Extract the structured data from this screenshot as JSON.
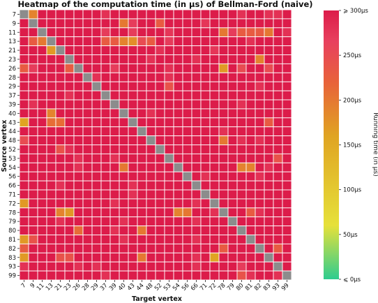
{
  "chart_data": {
    "type": "heatmap",
    "title": "Heatmap of the computation time (in μs) of Bellman-Ford (naive)",
    "xlabel": "Target vertex",
    "ylabel": "Source vertex",
    "colorbar": {
      "label": "Running time (in μs)",
      "range": [
        0,
        300
      ],
      "ticks": [
        {
          "value": 300,
          "label": "⩾ 300μs"
        },
        {
          "value": 250,
          "label": "250μs"
        },
        {
          "value": 200,
          "label": "200μs"
        },
        {
          "value": 150,
          "label": "150μs"
        },
        {
          "value": 100,
          "label": "100μs"
        },
        {
          "value": 50,
          "label": "50μs"
        },
        {
          "value": 0,
          "label": "⩽ 0μs"
        }
      ],
      "stops": [
        {
          "value": 0,
          "color": "#2ecc8f"
        },
        {
          "value": 60,
          "color": "#e6e13a"
        },
        {
          "value": 160,
          "color": "#e0a422"
        },
        {
          "value": 220,
          "color": "#e8623a"
        },
        {
          "value": 265,
          "color": "#e8415e"
        },
        {
          "value": 300,
          "color": "#dc1c4a"
        }
      ]
    },
    "diagonal_color": "#8c8c8c",
    "grid": false,
    "vertices": [
      "7",
      "9",
      "11",
      "13",
      "21",
      "23",
      "26",
      "28",
      "29",
      "37",
      "39",
      "40",
      "43",
      "44",
      "48",
      "52",
      "53",
      "54",
      "56",
      "66",
      "71",
      "72",
      "78",
      "79",
      "80",
      "81",
      "82",
      "83",
      "93",
      "99"
    ],
    "default_value": 300,
    "overrides": [
      [
        0,
        1,
        190
      ],
      [
        0,
        9,
        280
      ],
      [
        0,
        24,
        280
      ],
      [
        0,
        27,
        280
      ],
      [
        0,
        28,
        280
      ],
      [
        1,
        11,
        200
      ],
      [
        1,
        12,
        270
      ],
      [
        1,
        15,
        230
      ],
      [
        1,
        20,
        275
      ],
      [
        2,
        9,
        270
      ],
      [
        2,
        12,
        270
      ],
      [
        2,
        16,
        275
      ],
      [
        2,
        22,
        200
      ],
      [
        2,
        23,
        270
      ],
      [
        2,
        24,
        230
      ],
      [
        2,
        25,
        230
      ],
      [
        2,
        26,
        230
      ],
      [
        2,
        27,
        200
      ],
      [
        2,
        29,
        280
      ],
      [
        3,
        1,
        230
      ],
      [
        3,
        2,
        200
      ],
      [
        3,
        3,
        270
      ],
      [
        3,
        9,
        230
      ],
      [
        3,
        10,
        230
      ],
      [
        3,
        11,
        190
      ],
      [
        3,
        12,
        180
      ],
      [
        3,
        13,
        250
      ],
      [
        3,
        14,
        230
      ],
      [
        3,
        16,
        270
      ],
      [
        3,
        25,
        280
      ],
      [
        4,
        3,
        170
      ],
      [
        4,
        15,
        280
      ],
      [
        4,
        21,
        275
      ],
      [
        5,
        14,
        280
      ],
      [
        5,
        19,
        280
      ],
      [
        5,
        26,
        190
      ],
      [
        6,
        0,
        230
      ],
      [
        6,
        1,
        270
      ],
      [
        6,
        5,
        230
      ],
      [
        6,
        10,
        270
      ],
      [
        6,
        16,
        280
      ],
      [
        6,
        22,
        170
      ],
      [
        6,
        24,
        250
      ],
      [
        6,
        27,
        250
      ],
      [
        7,
        8,
        280
      ],
      [
        7,
        16,
        280
      ],
      [
        8,
        16,
        240
      ],
      [
        8,
        26,
        280
      ],
      [
        9,
        5,
        280
      ],
      [
        10,
        1,
        280
      ],
      [
        10,
        24,
        280
      ],
      [
        11,
        3,
        190
      ],
      [
        11,
        14,
        280
      ],
      [
        12,
        0,
        160
      ],
      [
        12,
        3,
        210
      ],
      [
        12,
        4,
        210
      ],
      [
        12,
        27,
        230
      ],
      [
        13,
        22,
        280
      ],
      [
        14,
        0,
        250
      ],
      [
        14,
        22,
        200
      ],
      [
        14,
        24,
        280
      ],
      [
        14,
        26,
        280
      ],
      [
        15,
        4,
        240
      ],
      [
        15,
        5,
        280
      ],
      [
        16,
        6,
        280
      ],
      [
        16,
        10,
        280
      ],
      [
        16,
        28,
        240
      ],
      [
        17,
        6,
        280
      ],
      [
        17,
        11,
        200
      ],
      [
        17,
        24,
        190
      ],
      [
        17,
        25,
        190
      ],
      [
        17,
        27,
        280
      ],
      [
        18,
        20,
        280
      ],
      [
        18,
        26,
        280
      ],
      [
        19,
        4,
        280
      ],
      [
        19,
        12,
        280
      ],
      [
        20,
        12,
        280
      ],
      [
        21,
        0,
        170
      ],
      [
        21,
        10,
        280
      ],
      [
        21,
        19,
        280
      ],
      [
        22,
        4,
        190
      ],
      [
        22,
        5,
        170
      ],
      [
        22,
        17,
        190
      ],
      [
        22,
        18,
        200
      ],
      [
        22,
        21,
        280
      ],
      [
        22,
        25,
        230
      ],
      [
        22,
        26,
        280
      ],
      [
        23,
        4,
        280
      ],
      [
        23,
        11,
        280
      ],
      [
        23,
        19,
        280
      ],
      [
        24,
        6,
        210
      ],
      [
        24,
        10,
        280
      ],
      [
        24,
        13,
        200
      ],
      [
        25,
        0,
        170
      ],
      [
        25,
        1,
        240
      ],
      [
        25,
        11,
        280
      ],
      [
        25,
        19,
        280
      ],
      [
        26,
        0,
        230
      ],
      [
        26,
        22,
        230
      ],
      [
        26,
        28,
        230
      ],
      [
        27,
        0,
        170
      ],
      [
        27,
        4,
        240
      ],
      [
        27,
        5,
        240
      ],
      [
        27,
        13,
        200
      ],
      [
        27,
        19,
        280
      ],
      [
        27,
        21,
        160
      ],
      [
        28,
        0,
        280
      ],
      [
        28,
        6,
        280
      ],
      [
        28,
        8,
        280
      ],
      [
        28,
        19,
        280
      ],
      [
        28,
        24,
        270
      ],
      [
        29,
        9,
        280
      ],
      [
        29,
        24,
        240
      ],
      [
        29,
        25,
        280
      ],
      [
        29,
        28,
        280
      ]
    ]
  }
}
